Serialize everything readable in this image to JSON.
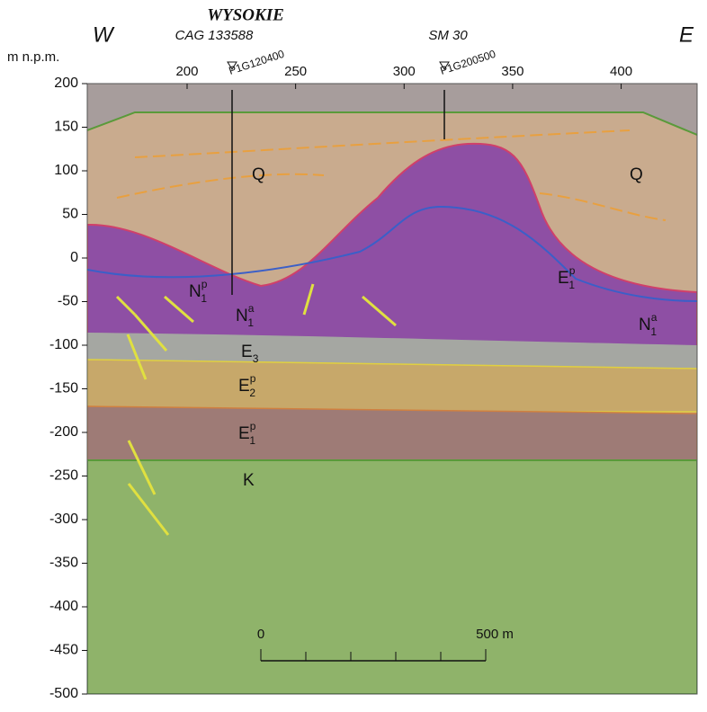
{
  "chart_data": {
    "type": "cross-section",
    "title": "WYSOKIE",
    "y_label": "m n.p.m.",
    "direction_left": "W",
    "direction_right": "E",
    "wells": [
      {
        "name": "CAG 133588",
        "line": "P1G120400",
        "x": 220
      },
      {
        "name": "SM 30",
        "line": "P1G200500",
        "x": 320
      }
    ],
    "xlim": [
      154,
      435
    ],
    "xticks": [
      200,
      250,
      300,
      350,
      400
    ],
    "ylim": [
      -500,
      200
    ],
    "yticks": [
      200,
      150,
      100,
      50,
      0,
      -50,
      -100,
      -150,
      -200,
      -250,
      -300,
      -350,
      -400,
      -450,
      -500
    ],
    "layers": [
      {
        "base": "Q"
      },
      {
        "base": "Q"
      },
      {
        "base": "N",
        "sub": "1",
        "sup": "p"
      },
      {
        "base": "N",
        "sub": "1",
        "sup": "a"
      },
      {
        "base": "N",
        "sub": "1",
        "sup": "a"
      },
      {
        "base": "E",
        "sub": "1",
        "sup": "p"
      },
      {
        "base": "E",
        "sub": "3"
      },
      {
        "base": "E",
        "sub": "2",
        "sup": "p"
      },
      {
        "base": "E",
        "sub": "1",
        "sup": "p"
      },
      {
        "base": "K"
      }
    ],
    "scale_bar": {
      "start": "0",
      "end": "500 m"
    }
  }
}
